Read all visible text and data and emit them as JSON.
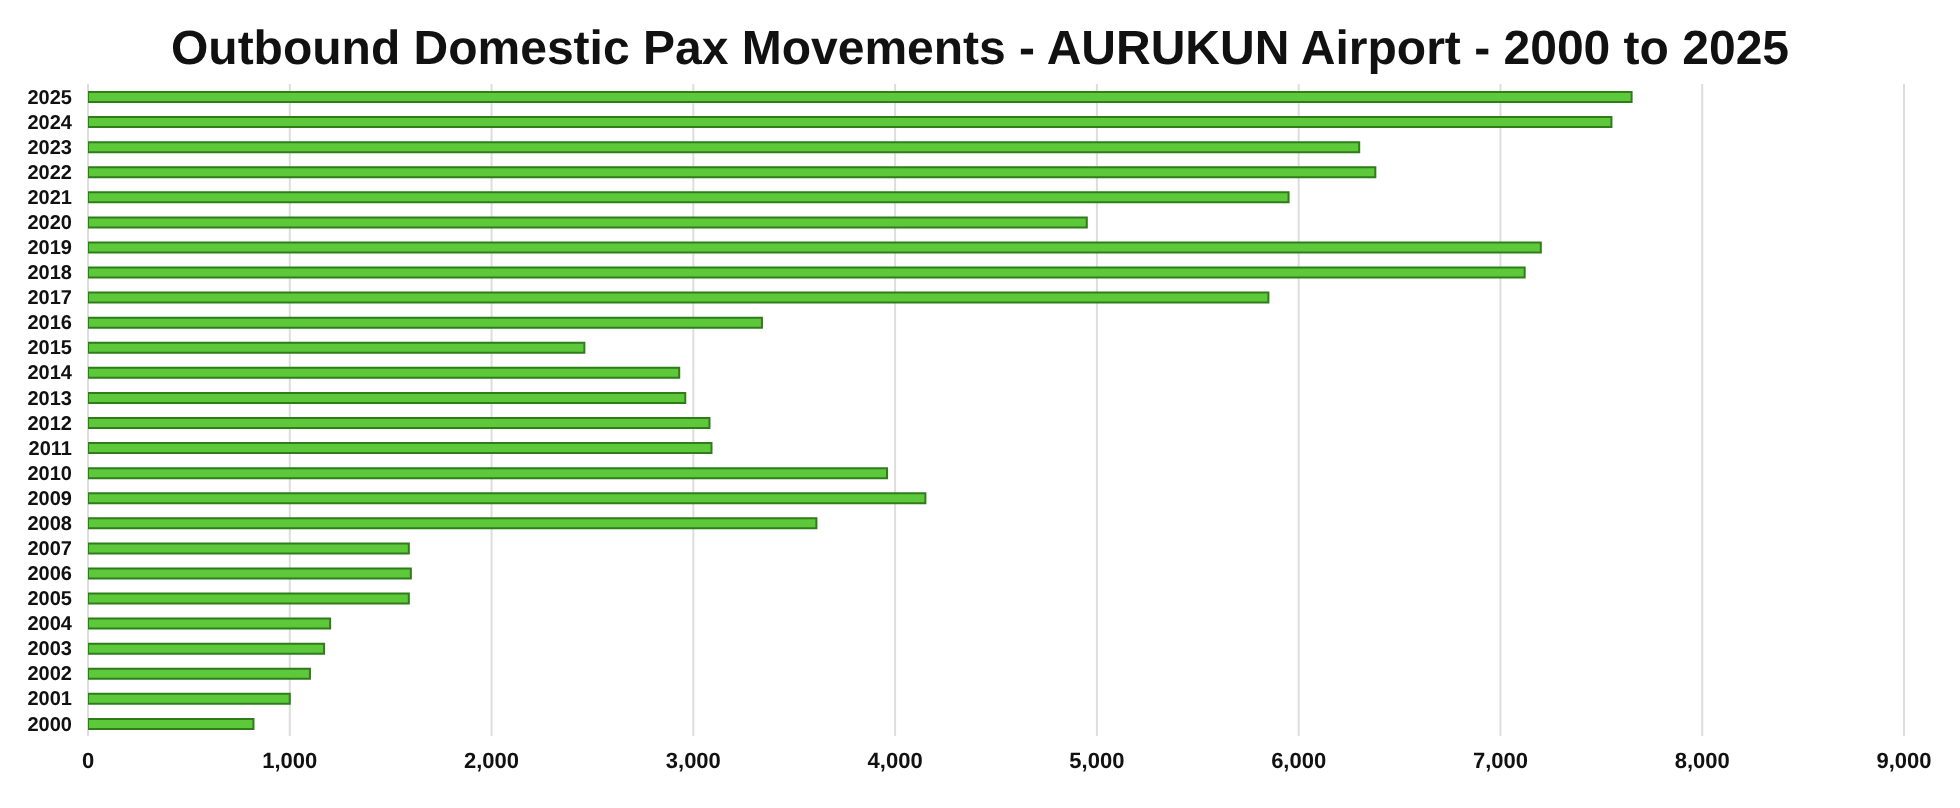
{
  "chart_data": {
    "type": "bar",
    "orientation": "horizontal",
    "title": "Outbound Domestic Pax Movements - AURUKUN Airport - 2000 to 2025",
    "categories": [
      "2025",
      "2024",
      "2023",
      "2022",
      "2021",
      "2020",
      "2019",
      "2018",
      "2017",
      "2016",
      "2015",
      "2014",
      "2013",
      "2012",
      "2011",
      "2010",
      "2009",
      "2008",
      "2007",
      "2006",
      "2005",
      "2004",
      "2003",
      "2002",
      "2001",
      "2000"
    ],
    "values": [
      7650,
      7550,
      6300,
      6380,
      5950,
      4950,
      7200,
      7120,
      5850,
      3340,
      2460,
      2930,
      2960,
      3080,
      3090,
      3960,
      4150,
      3610,
      1590,
      1600,
      1590,
      1200,
      1170,
      1100,
      1000,
      820
    ],
    "color": "#5cc83a",
    "xlim": [
      0,
      9000
    ],
    "xticks": [
      {
        "value": 0,
        "label": "0"
      },
      {
        "value": 1000,
        "label": "1,000"
      },
      {
        "value": 2000,
        "label": "2,000"
      },
      {
        "value": 3000,
        "label": "3,000"
      },
      {
        "value": 4000,
        "label": "4,000"
      },
      {
        "value": 5000,
        "label": "5,000"
      },
      {
        "value": 6000,
        "label": "6,000"
      },
      {
        "value": 7000,
        "label": "7,000"
      },
      {
        "value": 8000,
        "label": "8,000"
      },
      {
        "value": 9000,
        "label": "9,000"
      }
    ],
    "grid": "x"
  }
}
